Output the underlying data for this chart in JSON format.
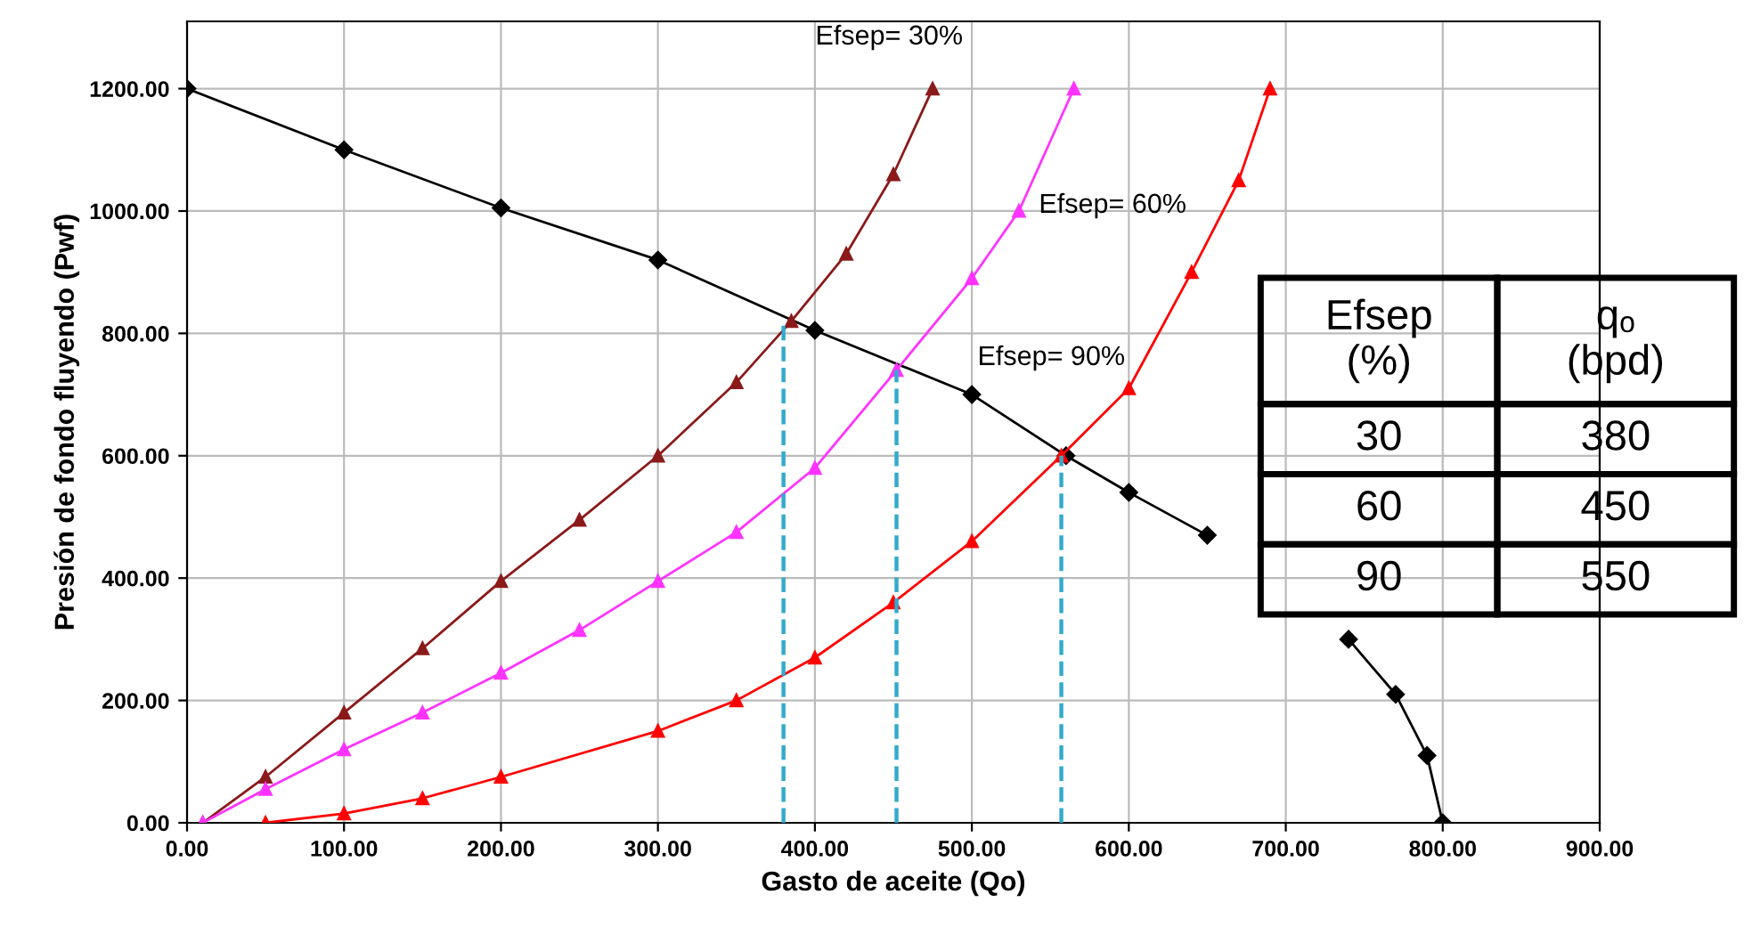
{
  "chart_data": {
    "type": "line",
    "xlabel": "Gasto de aceite (Qo)",
    "ylabel": "Presión de fondo fluyendo (Pwf)",
    "xlim": [
      0,
      900
    ],
    "ylim": [
      0,
      1310
    ],
    "xticks": [
      {
        "value": 0,
        "label": "0.00"
      },
      {
        "value": 100,
        "label": "100.00"
      },
      {
        "value": 200,
        "label": "200.00"
      },
      {
        "value": 300,
        "label": "300.00"
      },
      {
        "value": 400,
        "label": "400.00"
      },
      {
        "value": 500,
        "label": "500.00"
      },
      {
        "value": 600,
        "label": "600.00"
      },
      {
        "value": 700,
        "label": "700.00"
      },
      {
        "value": 800,
        "label": "800.00"
      },
      {
        "value": 900,
        "label": "900.00"
      }
    ],
    "yticks": [
      {
        "value": 0,
        "label": "0.00"
      },
      {
        "value": 200,
        "label": "200.00"
      },
      {
        "value": 400,
        "label": "400.00"
      },
      {
        "value": 600,
        "label": "600.00"
      },
      {
        "value": 800,
        "label": "800.00"
      },
      {
        "value": 1000,
        "label": "1000.00"
      },
      {
        "value": 1200,
        "label": "1200.00"
      }
    ],
    "grid": true,
    "series": [
      {
        "color": "#000000",
        "marker": "diamond",
        "line_style": "solid",
        "x": [
          0,
          100,
          200,
          300,
          400,
          500,
          560,
          600,
          650,
          700,
          740,
          770,
          790,
          800
        ],
        "values": [
          1200,
          1100,
          1005,
          920,
          805,
          700,
          600,
          540,
          470,
          null,
          300,
          210,
          110,
          0
        ]
      },
      {
        "color": "#8b1a1a",
        "marker": "triangle",
        "line_style": "solid",
        "x": [
          10,
          50,
          100,
          150,
          200,
          250,
          300,
          350,
          385,
          420,
          450,
          475
        ],
        "values": [
          0,
          75,
          180,
          285,
          395,
          495,
          600,
          720,
          820,
          930,
          1060,
          1200
        ]
      },
      {
        "color": "#ff33ff",
        "marker": "triangle",
        "line_style": "solid",
        "x": [
          10,
          50,
          100,
          150,
          200,
          250,
          300,
          350,
          400,
          452,
          500,
          530,
          565
        ],
        "values": [
          0,
          55,
          120,
          180,
          245,
          315,
          395,
          475,
          580,
          740,
          890,
          1000,
          1200
        ]
      },
      {
        "color": "#ff0000",
        "marker": "triangle",
        "line_style": "solid",
        "x": [
          50,
          100,
          150,
          200,
          300,
          350,
          400,
          450,
          500,
          557,
          600,
          640,
          670,
          690
        ],
        "values": [
          0,
          15,
          40,
          75,
          150,
          200,
          270,
          360,
          460,
          600,
          710,
          900,
          1050,
          1200
        ]
      },
      {
        "color": "#33aacc",
        "marker": "none",
        "line_style": "dashed",
        "x": [
          380,
          380
        ],
        "values": [
          0,
          820
        ]
      },
      {
        "color": "#33aacc",
        "marker": "none",
        "line_style": "dashed",
        "x": [
          452,
          452
        ],
        "values": [
          0,
          740
        ]
      },
      {
        "color": "#33aacc",
        "marker": "none",
        "line_style": "dashed",
        "x": [
          557,
          557
        ],
        "values": [
          0,
          600
        ]
      }
    ],
    "annotations": [
      "Efsep= 30%",
      "Efsep= 60%",
      "Efsep= 90%",
      "Efsep\n(%)",
      "qₒ\n(bpd)",
      "30",
      "380",
      "60",
      "450",
      "90",
      "550"
    ]
  }
}
